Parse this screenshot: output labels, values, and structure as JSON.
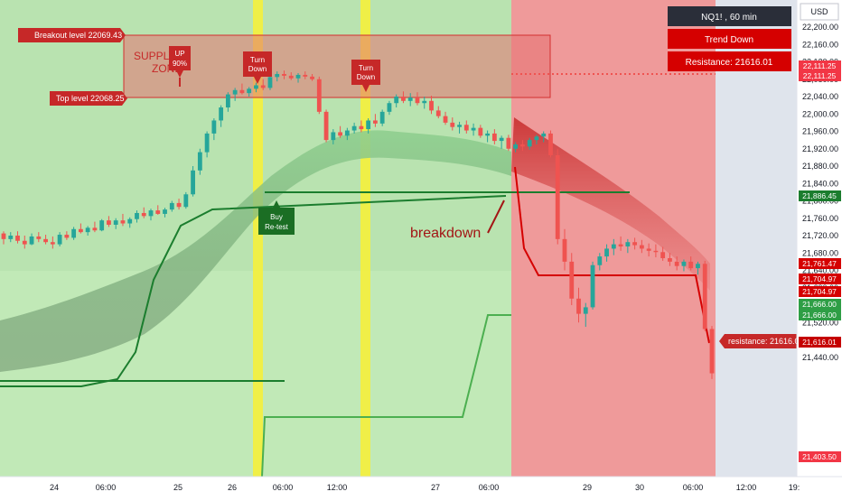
{
  "chart_data": {
    "type": "candlestick",
    "symbol": "NQ1! , 60 min",
    "currency": "USD",
    "trend_label": "Trend Down",
    "resistance_label": "Resistance: 21616.01",
    "y_ticks": [
      22200,
      22160,
      22120,
      22080,
      22040,
      22000,
      21960,
      21920,
      21880,
      21840,
      21800,
      21760,
      21720,
      21680,
      21640,
      21600,
      21560,
      21520,
      21480,
      21440
    ],
    "y_tick_labels": [
      "22,200.00",
      "22,160.00",
      "22,120.00",
      "22,080.00",
      "22,040.00",
      "22,000.00",
      "21,960.00",
      "21,920.00",
      "21,880.00",
      "21,840.00",
      "21,800.00",
      "21,760.00",
      "21,720.00",
      "21,680.00",
      "21,640.00",
      "21,600.00",
      "21,560.00",
      "21,520.00",
      "21,480.00",
      "21,440.00"
    ],
    "x_ticks": [
      "24",
      "06:00",
      "25",
      "26",
      "06:00",
      "12:00",
      "27",
      "06:00",
      "29",
      "30",
      "06:00",
      "12:00",
      "19:"
    ],
    "price_tags": [
      {
        "value": 22111.25,
        "label": "22,111.25",
        "color": "#f23645"
      },
      {
        "value": 22111.25,
        "label": "22,111.25",
        "color": "#f23645"
      },
      {
        "value": 21886.45,
        "label": "21,886.45",
        "color": "#1b7d2e"
      },
      {
        "value": 21761.47,
        "label": "21,761.47",
        "color": "#d50000"
      },
      {
        "value": 21704.97,
        "label": "21,704.97",
        "color": "#d50000"
      },
      {
        "value": 21704.97,
        "label": "21,704.97",
        "color": "#d50000"
      },
      {
        "value": 21666.0,
        "label": "21,666.00",
        "color": "#2e9e45"
      },
      {
        "value": 21666.0,
        "label": "21,666.00",
        "color": "#2e9e45"
      },
      {
        "value": 21616.01,
        "label": "21,616.01",
        "color": "#c50000"
      },
      {
        "value": 21403.5,
        "label": "21,403.50",
        "color": "#f23645"
      }
    ],
    "annotations": {
      "breakout": "Breakout level 22069.43",
      "top_level": "Top level 22068.25",
      "supply_zone": "SUPPLY ZONE",
      "up_label": "UP 90%",
      "turn_down_1": "Turn Down",
      "turn_down_2": "Turn Down",
      "buy_retest": "Buy Re-test",
      "breakdown": "breakdown",
      "resistance_tag": "resistance: 21616.01"
    },
    "supply_zone_range": [
      22069.43,
      22150
    ],
    "regimes": [
      {
        "name": "bullish",
        "color": "#b9e3b0"
      },
      {
        "name": "bearish",
        "color": "#ef9a9a"
      }
    ],
    "colors": {
      "up": "#26a69a",
      "down": "#ef5350",
      "accent_green": "#1b7d2e",
      "accent_red": "#d50000",
      "highlight": "#f5ef3c"
    },
    "candles": [
      [
        21725,
        21730,
        21700,
        21712
      ],
      [
        21712,
        21728,
        21705,
        21720
      ],
      [
        21720,
        21730,
        21702,
        21708
      ],
      [
        21708,
        21720,
        21690,
        21700
      ],
      [
        21700,
        21725,
        21698,
        21718
      ],
      [
        21718,
        21728,
        21705,
        21712
      ],
      [
        21712,
        21722,
        21700,
        21705
      ],
      [
        21705,
        21718,
        21690,
        21700
      ],
      [
        21700,
        21728,
        21695,
        21722
      ],
      [
        21722,
        21730,
        21710,
        21715
      ],
      [
        21715,
        21740,
        21710,
        21735
      ],
      [
        21735,
        21748,
        21725,
        21728
      ],
      [
        21728,
        21742,
        21720,
        21738
      ],
      [
        21738,
        21752,
        21728,
        21732
      ],
      [
        21732,
        21758,
        21730,
        21755
      ],
      [
        21755,
        21765,
        21740,
        21745
      ],
      [
        21745,
        21760,
        21735,
        21755
      ],
      [
        21755,
        21770,
        21742,
        21748
      ],
      [
        21748,
        21762,
        21738,
        21758
      ],
      [
        21758,
        21778,
        21750,
        21772
      ],
      [
        21772,
        21785,
        21760,
        21765
      ],
      [
        21765,
        21782,
        21755,
        21778
      ],
      [
        21778,
        21790,
        21768,
        21770
      ],
      [
        21770,
        21784,
        21762,
        21780
      ],
      [
        21780,
        21800,
        21775,
        21795
      ],
      [
        21795,
        21805,
        21780,
        21786
      ],
      [
        21786,
        21820,
        21782,
        21815
      ],
      [
        21815,
        21880,
        21810,
        21870
      ],
      [
        21870,
        21920,
        21860,
        21912
      ],
      [
        21912,
        21960,
        21900,
        21955
      ],
      [
        21955,
        21990,
        21940,
        21985
      ],
      [
        21985,
        22020,
        21970,
        22015
      ],
      [
        22015,
        22050,
        22005,
        22045
      ],
      [
        22045,
        22060,
        22030,
        22055
      ],
      [
        22055,
        22070,
        22045,
        22048
      ],
      [
        22048,
        22062,
        22040,
        22058
      ],
      [
        22058,
        22072,
        22050,
        22066
      ],
      [
        22066,
        22080,
        22055,
        22060
      ],
      [
        22060,
        22090,
        22055,
        22085
      ],
      [
        22085,
        22098,
        22075,
        22092
      ],
      [
        22092,
        22100,
        22080,
        22088
      ],
      [
        22088,
        22096,
        22078,
        22082
      ],
      [
        22082,
        22094,
        22072,
        22090
      ],
      [
        22090,
        22098,
        22080,
        22086
      ],
      [
        22086,
        22092,
        22076,
        22080
      ],
      [
        22080,
        22086,
        22000,
        22005
      ],
      [
        22005,
        22010,
        21935,
        21940
      ],
      [
        21940,
        21965,
        21930,
        21958
      ],
      [
        21958,
        21972,
        21945,
        21950
      ],
      [
        21950,
        21968,
        21940,
        21962
      ],
      [
        21962,
        21980,
        21955,
        21972
      ],
      [
        21972,
        21985,
        21958,
        21965
      ],
      [
        21965,
        21990,
        21955,
        21985
      ],
      [
        21985,
        22000,
        21970,
        21978
      ],
      [
        21978,
        22010,
        21972,
        22005
      ],
      [
        22005,
        22030,
        21998,
        22025
      ],
      [
        22025,
        22045,
        22015,
        22040
      ],
      [
        22040,
        22052,
        22025,
        22030
      ],
      [
        22030,
        22048,
        22018,
        22038
      ],
      [
        22038,
        22050,
        22020,
        22025
      ],
      [
        22025,
        22040,
        22012,
        22030
      ],
      [
        22030,
        22042,
        22000,
        22008
      ],
      [
        22008,
        22018,
        21990,
        21995
      ],
      [
        21995,
        22005,
        21975,
        21980
      ],
      [
        21980,
        21992,
        21962,
        21970
      ],
      [
        21970,
        21982,
        21955,
        21975
      ],
      [
        21975,
        21985,
        21955,
        21962
      ],
      [
        21962,
        21978,
        21950,
        21968
      ],
      [
        21968,
        21975,
        21945,
        21950
      ],
      [
        21950,
        21962,
        21935,
        21955
      ],
      [
        21955,
        21965,
        21930,
        21938
      ],
      [
        21938,
        21950,
        21920,
        21945
      ],
      [
        21945,
        21952,
        21915,
        21920
      ],
      [
        21920,
        21935,
        21912,
        21930
      ],
      [
        21930,
        21940,
        21915,
        21925
      ],
      [
        21925,
        21945,
        21918,
        21940
      ],
      [
        21940,
        21952,
        21930,
        21948
      ],
      [
        21948,
        21960,
        21935,
        21955
      ],
      [
        21955,
        21962,
        21900,
        21905
      ],
      [
        21905,
        21920,
        21700,
        21712
      ],
      [
        21712,
        21735,
        21640,
        21660
      ],
      [
        21660,
        21680,
        21560,
        21575
      ],
      [
        21575,
        21600,
        21520,
        21540
      ],
      [
        21540,
        21565,
        21510,
        21555
      ],
      [
        21555,
        21660,
        21550,
        21652
      ],
      [
        21652,
        21680,
        21640,
        21672
      ],
      [
        21672,
        21700,
        21660,
        21690
      ],
      [
        21690,
        21712,
        21675,
        21700
      ],
      [
        21700,
        21718,
        21685,
        21695
      ],
      [
        21695,
        21712,
        21680,
        21705
      ],
      [
        21705,
        21715,
        21688,
        21698
      ],
      [
        21698,
        21710,
        21680,
        21690
      ],
      [
        21690,
        21702,
        21672,
        21685
      ],
      [
        21685,
        21700,
        21670,
        21682
      ],
      [
        21682,
        21694,
        21662,
        21668
      ],
      [
        21668,
        21680,
        21650,
        21660
      ],
      [
        21660,
        21672,
        21640,
        21650
      ],
      [
        21650,
        21665,
        21638,
        21660
      ],
      [
        21660,
        21672,
        21640,
        21645
      ],
      [
        21645,
        21660,
        21630,
        21655
      ],
      [
        21655,
        21662,
        21500,
        21505
      ],
      [
        21505,
        21512,
        21390,
        21403
      ]
    ]
  }
}
